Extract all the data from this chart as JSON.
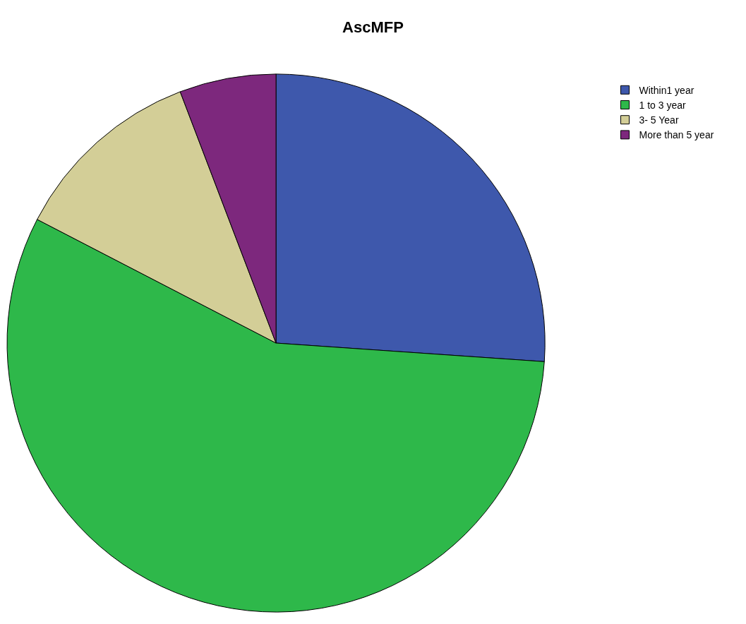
{
  "chart_data": {
    "type": "pie",
    "title": "AscMFP",
    "categories": [
      "Within1 year",
      "1 to 3 year",
      "3- 5 Year",
      "More than 5 year"
    ],
    "values": [
      26.1,
      56.5,
      11.6,
      5.8
    ],
    "colors": [
      "#3e58ac",
      "#2eb84a",
      "#d3ce97",
      "#7d287d"
    ],
    "legend": "top right"
  }
}
